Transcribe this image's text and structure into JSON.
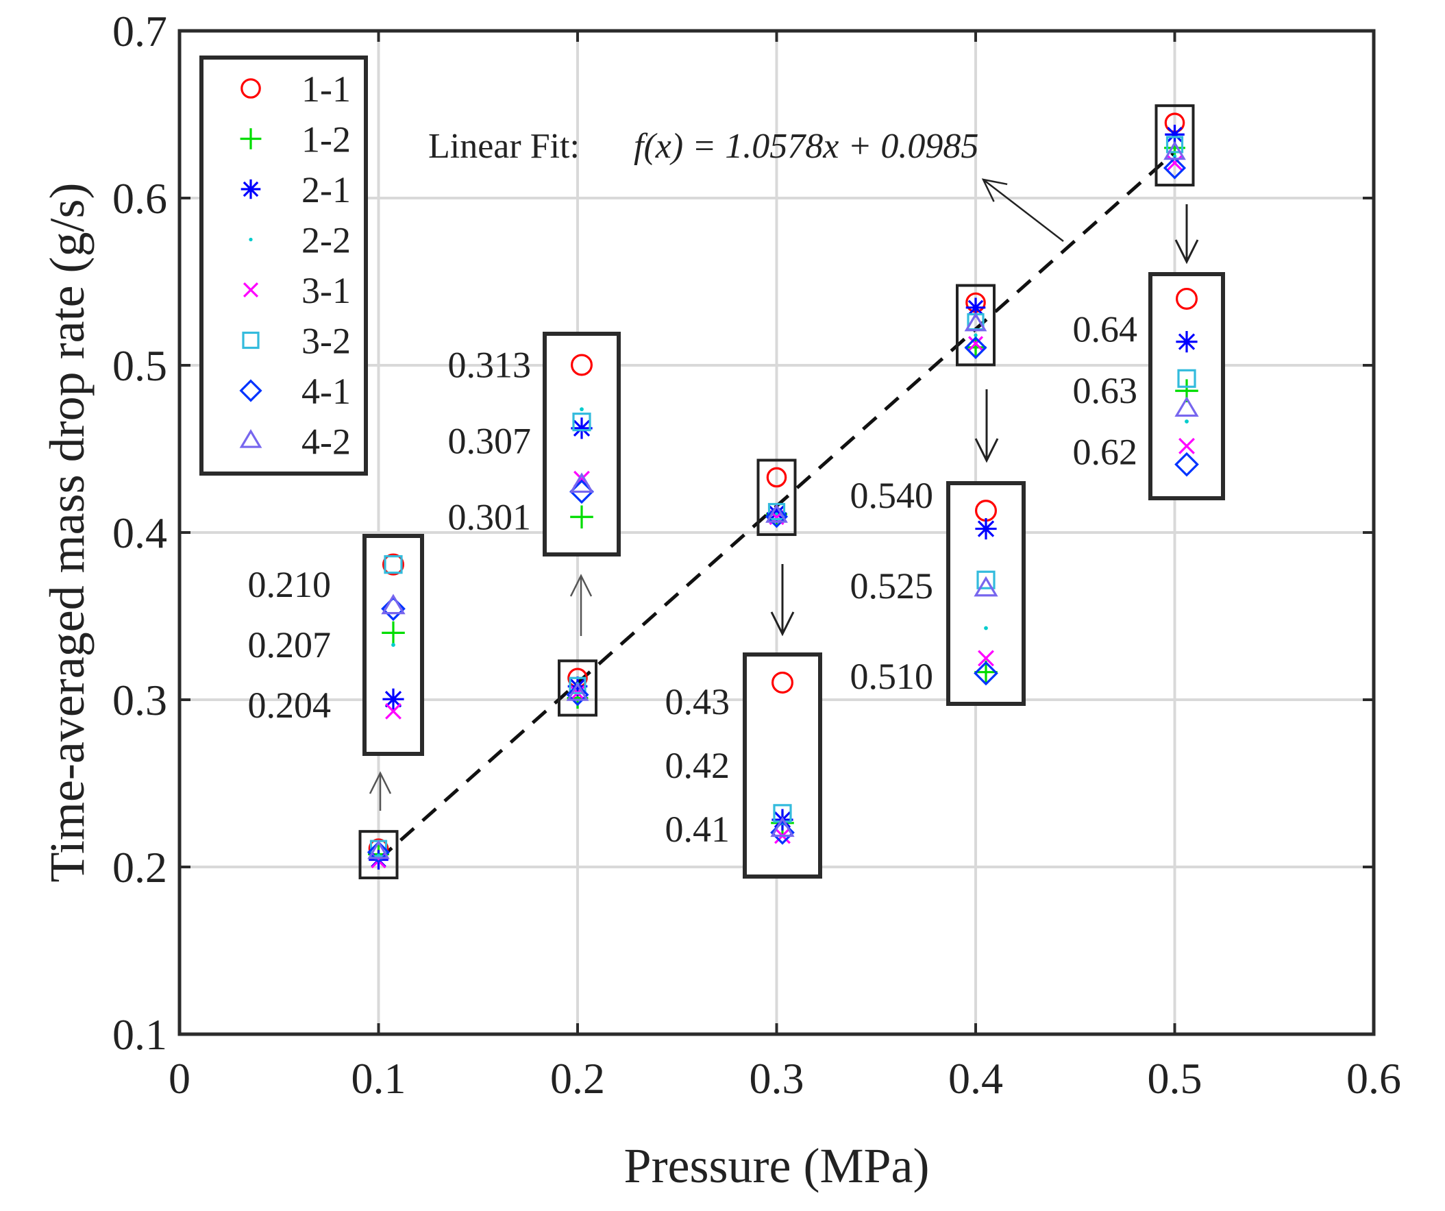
{
  "chart_data": {
    "type": "scatter",
    "xlabel": "Pressure (MPa)",
    "ylabel": "Time-averaged mass drop rate (g/s)",
    "xlim": [
      0,
      0.6
    ],
    "ylim": [
      0.1,
      0.7
    ],
    "xticks": [
      0,
      0.1,
      0.2,
      0.3,
      0.4,
      0.5,
      0.6
    ],
    "xtick_labels": [
      "0",
      "0.1",
      "0.2",
      "0.3",
      "0.4",
      "0.5",
      "0.6"
    ],
    "yticks": [
      0.1,
      0.2,
      0.3,
      0.4,
      0.5,
      0.6,
      0.7
    ],
    "ytick_labels": [
      "0.1",
      "0.2",
      "0.3",
      "0.4",
      "0.5",
      "0.6",
      "0.7"
    ],
    "grid": true,
    "legend_position": "top-left",
    "x": [
      0.1,
      0.2,
      0.3,
      0.4,
      0.5
    ],
    "series": [
      {
        "name": "1-1",
        "marker": "circle",
        "color": "#ff0000",
        "values": [
          0.211,
          0.313,
          0.433,
          0.5375,
          0.645
        ]
      },
      {
        "name": "1-2",
        "marker": "plus",
        "color": "#00dd00",
        "values": [
          0.2076,
          0.301,
          0.411,
          0.5107,
          0.63
        ]
      },
      {
        "name": "2-1",
        "marker": "asterisk",
        "color": "#0000ff",
        "values": [
          0.2043,
          0.308,
          0.4115,
          0.5345,
          0.638
        ]
      },
      {
        "name": "2-2",
        "marker": "point",
        "color": "#00cccc",
        "values": [
          0.207,
          0.3095,
          0.411,
          0.518,
          0.625
        ]
      },
      {
        "name": "3-1",
        "marker": "cross",
        "color": "#ff00ff",
        "values": [
          0.2037,
          0.304,
          0.409,
          0.513,
          0.621
        ]
      },
      {
        "name": "3-2",
        "marker": "square",
        "color": "#33bbdd",
        "values": [
          0.211,
          0.3085,
          0.4125,
          0.526,
          0.632
        ]
      },
      {
        "name": "4-1",
        "marker": "diamond",
        "color": "#0033ff",
        "values": [
          0.2088,
          0.303,
          0.4095,
          0.5105,
          0.618
        ]
      },
      {
        "name": "4-2",
        "marker": "triangle",
        "color": "#7766ee",
        "values": [
          0.2089,
          0.3035,
          0.41,
          0.5245,
          0.627
        ]
      }
    ],
    "fit": {
      "label": "Linear Fit:",
      "equation": "f(x) = 1.0578x + 0.0985",
      "slope": 1.0578,
      "intercept": 0.0985,
      "x_range": [
        0.1,
        0.5
      ]
    },
    "insets": [
      {
        "x": 0.1,
        "y_range": [
          0.2025,
          0.2115
        ],
        "ticks": [
          0.204,
          0.207,
          0.21
        ],
        "tick_labels": [
          "0.204",
          "0.207",
          "0.210"
        ]
      },
      {
        "x": 0.2,
        "y_range": [
          0.2995,
          0.314
        ],
        "ticks": [
          0.301,
          0.307,
          0.313
        ],
        "tick_labels": [
          "0.301",
          "0.307",
          "0.313"
        ]
      },
      {
        "x": 0.3,
        "y_range": [
          0.4055,
          0.4345
        ],
        "ticks": [
          0.41,
          0.42,
          0.43
        ],
        "tick_labels": [
          "0.41",
          "0.42",
          "0.43"
        ]
      },
      {
        "x": 0.4,
        "y_range": [
          0.5085,
          0.539
        ],
        "ticks": [
          0.51,
          0.525,
          0.54
        ],
        "tick_labels": [
          "0.510",
          "0.525",
          "0.540"
        ]
      },
      {
        "x": 0.5,
        "y_range": [
          0.6155,
          0.646
        ],
        "ticks": [
          0.62,
          0.63,
          0.64
        ],
        "tick_labels": [
          "0.62",
          "0.63",
          "0.64"
        ]
      }
    ]
  }
}
